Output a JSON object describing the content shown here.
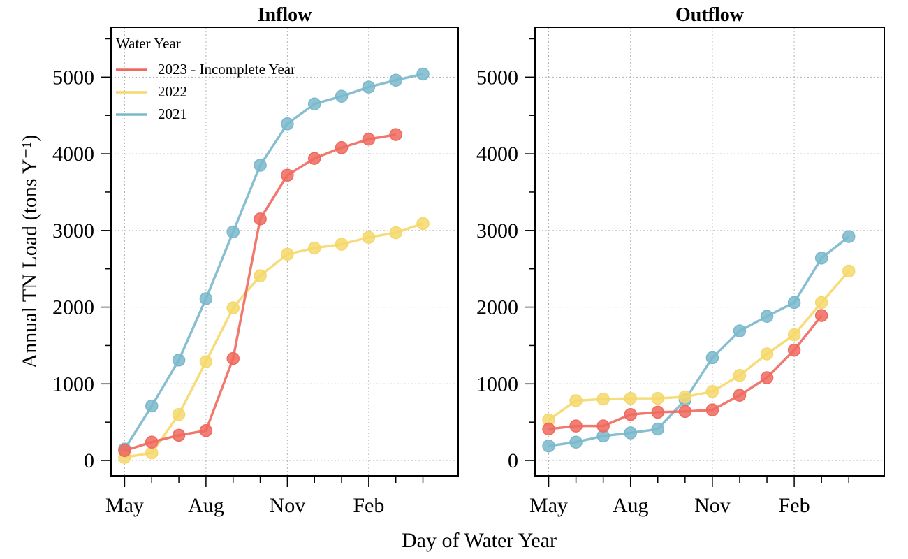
{
  "colors": {
    "series_2023": "#f0695e",
    "series_2022": "#f5d86b",
    "series_2021": "#7ab8cc"
  },
  "chart_data": [
    {
      "type": "line",
      "title": "Inflow",
      "xlabel": "Day of Water Year",
      "ylabel": "Annual TN Load (tons Y⁻¹)",
      "ylim": [
        -200,
        5650
      ],
      "xlim": [
        -0.5,
        12.3
      ],
      "x_tick_labels": [
        "May",
        "Aug",
        "Nov",
        "Feb"
      ],
      "x_tick_label_positions": [
        0,
        3,
        6,
        9
      ],
      "y_ticks": [
        0,
        1000,
        2000,
        3000,
        4000,
        5000
      ],
      "grid": true,
      "legend": {
        "title": "Water Year",
        "placement": "top-left",
        "entries": [
          "2023 - Incomplete Year",
          "2022",
          "2021"
        ]
      },
      "series": [
        {
          "name": "2023 - Incomplete Year",
          "color_key": "series_2023",
          "x": [
            0,
            1,
            2,
            3,
            4,
            5,
            6,
            7,
            8,
            9,
            10
          ],
          "values": [
            130,
            240,
            330,
            390,
            1330,
            3150,
            3720,
            3940,
            4080,
            4190,
            4250
          ]
        },
        {
          "name": "2022",
          "color_key": "series_2022",
          "x": [
            0,
            1,
            2,
            3,
            4,
            5,
            6,
            7,
            8,
            9,
            10,
            11
          ],
          "values": [
            40,
            100,
            600,
            1290,
            1990,
            2410,
            2690,
            2770,
            2820,
            2910,
            2970,
            3090
          ]
        },
        {
          "name": "2021",
          "color_key": "series_2021",
          "x": [
            0,
            1,
            2,
            3,
            4,
            5,
            6,
            7,
            8,
            9,
            10,
            11
          ],
          "values": [
            150,
            710,
            1310,
            2110,
            2980,
            3850,
            4390,
            4650,
            4750,
            4870,
            4960,
            5040
          ]
        }
      ]
    },
    {
      "type": "line",
      "title": "Outflow",
      "xlabel": "Day of Water Year",
      "ylabel": "",
      "ylim": [
        -200,
        5650
      ],
      "xlim": [
        -0.5,
        12.3
      ],
      "x_tick_labels": [
        "May",
        "Aug",
        "Nov",
        "Feb"
      ],
      "x_tick_label_positions": [
        0,
        3,
        6,
        9
      ],
      "y_ticks": [
        0,
        1000,
        2000,
        3000,
        4000,
        5000
      ],
      "grid": true,
      "series": [
        {
          "name": "2023 - Incomplete Year",
          "color_key": "series_2023",
          "x": [
            0,
            1,
            2,
            3,
            4,
            5,
            6,
            7,
            8,
            9,
            10
          ],
          "values": [
            410,
            450,
            450,
            600,
            630,
            640,
            660,
            850,
            1080,
            1440,
            1890
          ]
        },
        {
          "name": "2022",
          "color_key": "series_2022",
          "x": [
            0,
            1,
            2,
            3,
            4,
            5,
            6,
            7,
            8,
            9,
            10,
            11
          ],
          "values": [
            530,
            780,
            800,
            810,
            810,
            830,
            900,
            1110,
            1390,
            1640,
            2060,
            2470
          ]
        },
        {
          "name": "2021",
          "color_key": "series_2021",
          "x": [
            0,
            1,
            2,
            3,
            4,
            5,
            6,
            7,
            8,
            9,
            10,
            11
          ],
          "values": [
            190,
            240,
            320,
            360,
            410,
            790,
            1340,
            1690,
            1880,
            2060,
            2640,
            2920
          ]
        }
      ]
    }
  ],
  "shared": {
    "xlabel": "Day of Water Year",
    "ylabel": "Annual TN Load (tons Y⁻¹)"
  }
}
